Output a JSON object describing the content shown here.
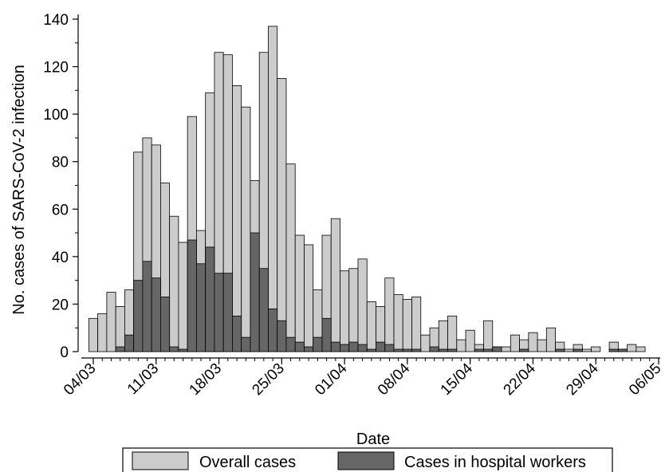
{
  "chart_data": {
    "type": "bar",
    "xlabel": "Date",
    "ylabel": "No. cases of SARS-CoV-2 infection",
    "ylim": [
      0,
      140
    ],
    "yticks": [
      0,
      20,
      40,
      60,
      80,
      100,
      120,
      140
    ],
    "x_start": "04/03",
    "x_end": "06/05",
    "xtick_labels": [
      "04/03",
      "11/03",
      "18/03",
      "25/03",
      "01/04",
      "08/04",
      "15/04",
      "22/04",
      "29/04",
      "06/05"
    ],
    "categories": [
      "04/03",
      "05/03",
      "06/03",
      "07/03",
      "08/03",
      "09/03",
      "10/03",
      "11/03",
      "12/03",
      "13/03",
      "14/03",
      "15/03",
      "16/03",
      "17/03",
      "18/03",
      "19/03",
      "20/03",
      "21/03",
      "22/03",
      "23/03",
      "24/03",
      "25/03",
      "26/03",
      "27/03",
      "28/03",
      "29/03",
      "30/03",
      "31/03",
      "01/04",
      "02/04",
      "03/04",
      "04/04",
      "05/04",
      "06/04",
      "07/04",
      "08/04",
      "09/04",
      "10/04",
      "11/04",
      "12/04",
      "13/04",
      "14/04",
      "15/04",
      "16/04",
      "17/04",
      "18/04",
      "19/04",
      "20/04",
      "21/04",
      "22/04",
      "23/04",
      "24/04",
      "25/04",
      "26/04",
      "27/04",
      "28/04",
      "29/04",
      "30/04",
      "01/05",
      "02/05",
      "03/05",
      "04/05",
      "05/05",
      "06/05"
    ],
    "series": [
      {
        "name": "Overall cases",
        "color": "#cccccc",
        "values": [
          14,
          16,
          25,
          19,
          26,
          84,
          90,
          87,
          71,
          57,
          46,
          99,
          51,
          109,
          126,
          125,
          112,
          103,
          72,
          126,
          137,
          115,
          79,
          49,
          45,
          26,
          49,
          56,
          34,
          35,
          39,
          21,
          19,
          31,
          24,
          22,
          23,
          7,
          10,
          13,
          15,
          5,
          9,
          3,
          13,
          2,
          2,
          7,
          5,
          8,
          5,
          10,
          4,
          1,
          3,
          1,
          2,
          0,
          4,
          1,
          3,
          2,
          0,
          0
        ]
      },
      {
        "name": "Cases in hospital workers",
        "color": "#666666",
        "values": [
          0,
          0,
          0,
          2,
          7,
          30,
          38,
          31,
          23,
          2,
          1,
          47,
          37,
          44,
          33,
          33,
          15,
          6,
          50,
          35,
          18,
          13,
          6,
          4,
          2,
          6,
          14,
          4,
          3,
          4,
          3,
          1,
          4,
          3,
          1,
          1,
          1,
          0,
          2,
          1,
          1,
          0,
          0,
          1,
          1,
          2,
          0,
          0,
          1,
          0,
          0,
          0,
          1,
          0,
          1,
          0,
          0,
          0,
          1,
          1,
          0,
          0,
          0,
          0
        ]
      }
    ],
    "legend_position": "bottom"
  }
}
